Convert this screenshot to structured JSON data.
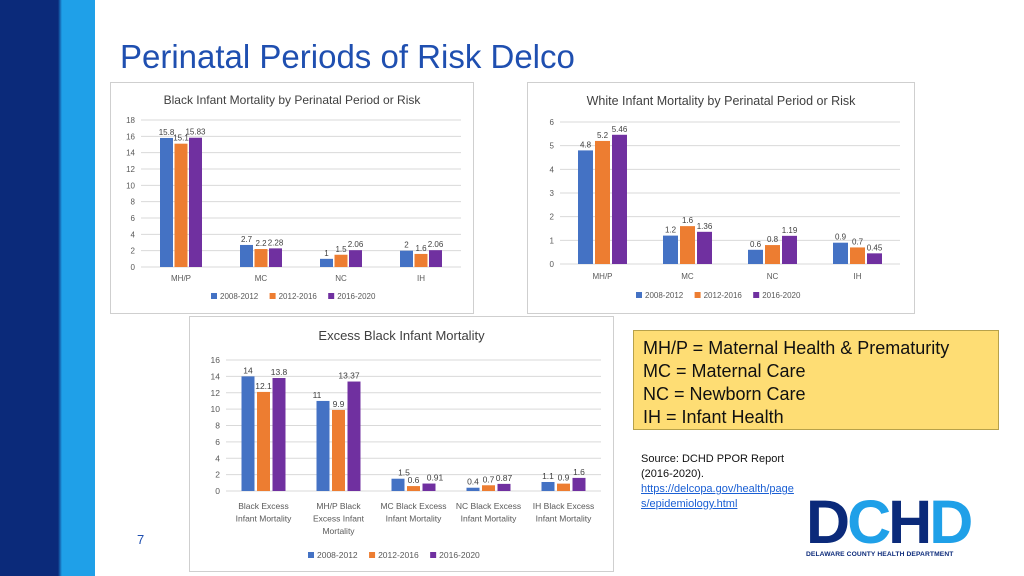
{
  "slide": {
    "title": "Perinatal Periods of Risk Delco",
    "page_number": "7"
  },
  "colors": {
    "accent_dark": "#0b2a7a",
    "accent_light": "#1fa0e8",
    "series": [
      "#4472c4",
      "#ed7d31",
      "#7030a0"
    ]
  },
  "chart_data": [
    {
      "type": "bar",
      "title": "Black Infant Mortality by Perinatal Period or Risk",
      "categories": [
        "MH/P",
        "MC",
        "NC",
        "IH"
      ],
      "series": [
        {
          "name": "2008-2012",
          "values": [
            15.8,
            2.7,
            1,
            2
          ],
          "labels": [
            "15.8",
            "2.7",
            "1",
            "2"
          ]
        },
        {
          "name": "2012-2016",
          "values": [
            15.1,
            2.2,
            1.5,
            1.6
          ],
          "labels": [
            "15.1",
            "2.2",
            "1.5",
            "1.6"
          ]
        },
        {
          "name": "2016-2020",
          "values": [
            15.83,
            2.28,
            2.06,
            2.06
          ],
          "labels": [
            "15.83",
            "2.28",
            "2.06",
            "2.06"
          ]
        }
      ],
      "ylim": [
        0,
        18
      ],
      "yticks": [
        "0",
        "2",
        "4",
        "6",
        "8",
        "10",
        "12",
        "14",
        "16",
        "18"
      ],
      "legend": "bottom"
    },
    {
      "type": "bar",
      "title": "White Infant Mortality by Perinatal Period or Risk",
      "categories": [
        "MH/P",
        "MC",
        "NC",
        "IH"
      ],
      "series": [
        {
          "name": "2008-2012",
          "values": [
            4.8,
            1.2,
            0.6,
            0.9
          ],
          "labels": [
            "4.8",
            "1.2",
            "0.6",
            "0.9"
          ]
        },
        {
          "name": "2012-2016",
          "values": [
            5.2,
            1.6,
            0.8,
            0.7
          ],
          "labels": [
            "5.2",
            "1.6",
            "0.8",
            "0.7"
          ]
        },
        {
          "name": "2016-2020",
          "values": [
            5.46,
            1.36,
            1.19,
            0.45
          ],
          "labels": [
            "5.46",
            "1.36",
            "1.19",
            "0.45"
          ]
        }
      ],
      "ylim": [
        0,
        6
      ],
      "yticks": [
        "0",
        "1",
        "2",
        "3",
        "4",
        "5",
        "6"
      ],
      "legend": "bottom"
    },
    {
      "type": "bar",
      "title": "Excess Black Infant Mortality",
      "categories": [
        [
          "Black Excess",
          "Infant Mortality"
        ],
        [
          "MH/P Black",
          "Excess Infant",
          "Mortality"
        ],
        [
          "MC Black Excess",
          "Infant Mortality"
        ],
        [
          "NC Black Excess",
          "Infant Mortality"
        ],
        [
          "IH Black Excess",
          "Infant Mortality"
        ]
      ],
      "series": [
        {
          "name": "2008-2012",
          "values": [
            14,
            11,
            1.5,
            0.4,
            1.1
          ],
          "labels": [
            "14",
            "11",
            "1.5",
            "0.4",
            "1.1"
          ]
        },
        {
          "name": "2012-2016",
          "values": [
            12.1,
            9.9,
            0.6,
            0.7,
            0.9
          ],
          "labels": [
            "12.1",
            "9.9",
            "0.6",
            "0.7",
            "0.9"
          ]
        },
        {
          "name": "2016-2020",
          "values": [
            13.8,
            13.37,
            0.91,
            0.87,
            1.6
          ],
          "labels": [
            "13.8",
            "13.37",
            "0.91",
            "0.87",
            "1.6"
          ]
        }
      ],
      "ylim": [
        0,
        16
      ],
      "yticks": [
        "0",
        "2",
        "4",
        "6",
        "8",
        "10",
        "12",
        "14",
        "16"
      ],
      "legend": "bottom"
    }
  ],
  "legend_box": {
    "lines": [
      "MH/P = Maternal Health & Prematurity",
      "MC = Maternal Care",
      "NC = Newborn Care",
      "IH = Infant Health"
    ]
  },
  "source": {
    "text": "Source: DCHD PPOR Report (2016-2020).",
    "link": "https://delcopa.gov/health/pages/epidemiology.html"
  },
  "logo": {
    "letters": [
      "D",
      "C",
      "H",
      "D"
    ],
    "letter_colors": [
      "#0b2a7a",
      "#1fa0e8",
      "#0b2a7a",
      "#1fa0e8"
    ],
    "text": "DELAWARE COUNTY HEALTH DEPARTMENT"
  }
}
